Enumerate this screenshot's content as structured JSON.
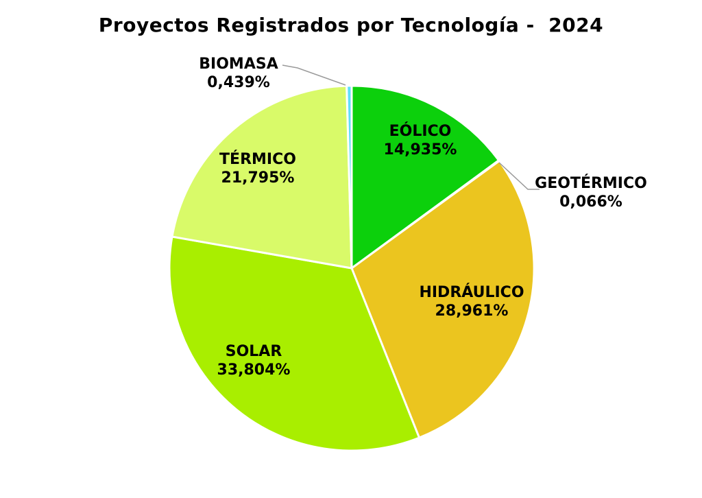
{
  "title": "Proyectos Registrados por Tecnología -  2024",
  "chart_data": {
    "type": "pie",
    "title": "Proyectos Registrados por Tecnología -  2024",
    "units": "%",
    "decimal_separator": "comma",
    "start_angle": "12 o'clock",
    "direction": "clockwise",
    "legend": "none",
    "stroke_color": "#ffffff",
    "leader_line_color": "#9a9a9a",
    "slices": [
      {
        "id": "eolico",
        "label": "EÓLICO",
        "value": 14.935,
        "pct_label": "14,935%",
        "color": "#0cd00c",
        "label_placement": "inside"
      },
      {
        "id": "geotermico",
        "label": "GEOTÉRMICO",
        "value": 0.066,
        "pct_label": "0,066%",
        "color": "#bdbdbd",
        "label_placement": "outside"
      },
      {
        "id": "hidraulico",
        "label": "HIDRÁULICO",
        "value": 28.961,
        "pct_label": "28,961%",
        "color": "#ebc51f",
        "label_placement": "inside"
      },
      {
        "id": "solar",
        "label": "SOLAR",
        "value": 33.804,
        "pct_label": "33,804%",
        "color": "#a9ee00",
        "label_placement": "inside"
      },
      {
        "id": "termico",
        "label": "TÉRMICO",
        "value": 21.795,
        "pct_label": "21,795%",
        "color": "#d9fa69",
        "label_placement": "inside"
      },
      {
        "id": "biomasa",
        "label": "BIOMASA",
        "value": 0.439,
        "pct_label": "0,439%",
        "color": "#5fdffb",
        "label_placement": "outside"
      }
    ]
  }
}
